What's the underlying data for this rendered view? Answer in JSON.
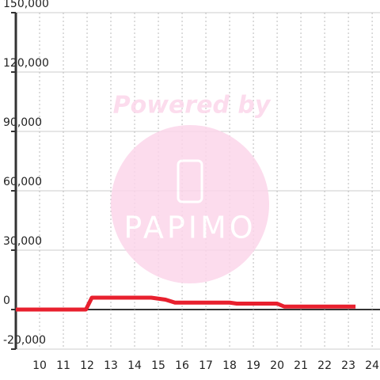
{
  "chart_data": {
    "type": "line",
    "watermark": {
      "top": "Powered by",
      "logo": "PAPIMO"
    },
    "x": [
      9,
      11.95,
      12.2,
      14.7,
      15.3,
      15.7,
      18,
      18.3,
      20,
      20.3,
      23.3
    ],
    "series": [
      {
        "color": "#e8202e",
        "values": [
          0,
          0,
          6000,
          6000,
          5000,
          3500,
          3500,
          3000,
          3000,
          1500,
          1500
        ]
      }
    ],
    "xlim": [
      9,
      24.33
    ],
    "xticks": [
      10,
      11,
      12,
      13,
      14,
      15,
      16,
      17,
      18,
      19,
      20,
      21,
      22,
      23,
      24
    ],
    "ylim": [
      -20000,
      150000
    ],
    "yticks": [
      {
        "value": -20000,
        "label": "-20,000"
      },
      0,
      {
        "value": 30000,
        "label": "30,000"
      },
      {
        "value": 60000,
        "label": "60,000"
      },
      {
        "value": 90000,
        "label": "90,000"
      },
      {
        "value": 120000,
        "label": "120,000"
      },
      {
        "value": 150000,
        "label": "150,000"
      }
    ],
    "grid": true
  }
}
